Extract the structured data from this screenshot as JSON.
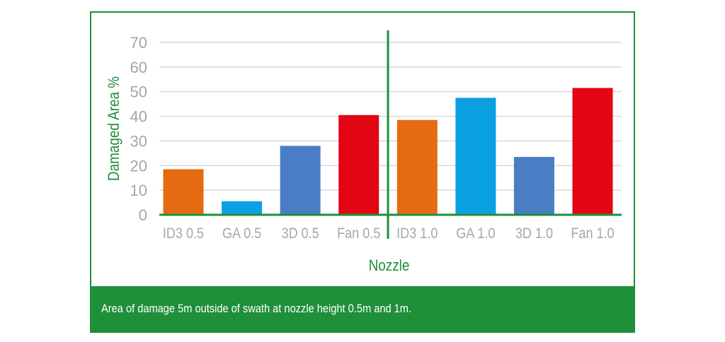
{
  "chart_data": {
    "type": "bar",
    "categories": [
      "ID3 0.5",
      "GA 0.5",
      "3D 0.5",
      "Fan 0.5",
      "ID3 1.0",
      "GA 1.0",
      "3D 1.0",
      "Fan 1.0"
    ],
    "values": [
      18.5,
      5.5,
      28,
      40.5,
      38.5,
      47.5,
      23.5,
      51.5
    ],
    "bar_colors": [
      "#e46b12",
      "#0aa0e2",
      "#4a7ec4",
      "#e30613",
      "#e46b12",
      "#0aa0e2",
      "#4a7ec4",
      "#e30613"
    ],
    "xlabel": "Nozzle",
    "ylabel": "Damaged Area %",
    "ylim": [
      0,
      70
    ],
    "yticks": [
      0,
      10,
      20,
      30,
      40,
      50,
      60,
      70
    ],
    "grid": true,
    "divider_between": [
      "Fan 0.5",
      "ID3 1.0"
    ],
    "axis_color": "#1f8f3a",
    "grid_color": "#d0d0d0"
  },
  "caption": "Area of damage 5m outside of swath at nozzle height 0.5m and 1m."
}
